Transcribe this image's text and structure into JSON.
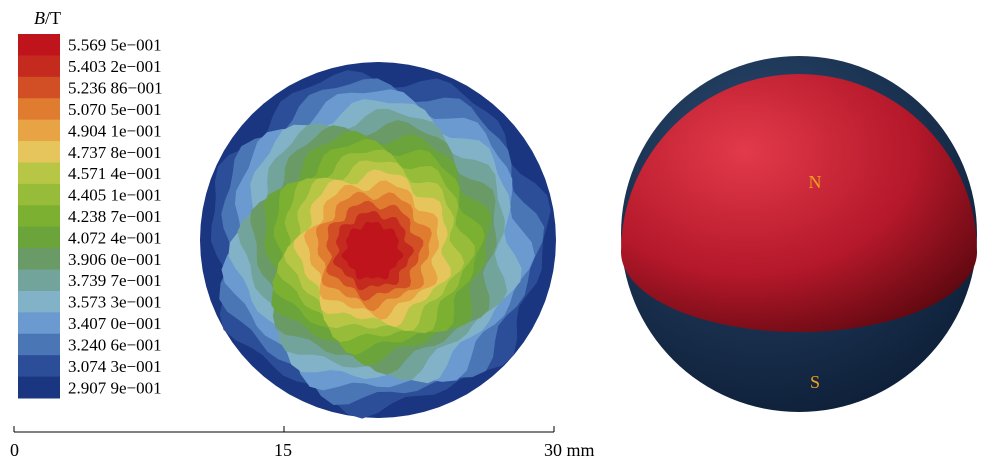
{
  "legend": {
    "title_symbol": "B",
    "title_unit": "/T",
    "labels": [
      "5.569 5e−001",
      "5.403 2e−001",
      "5.236 86−001",
      "5.070 5e−001",
      "4.904 1e−001",
      "4.737 8e−001",
      "4.571 4e−001",
      "4.405 1e−001",
      "4.238 7e−001",
      "4.072 4e−001",
      "3.906 0e−001",
      "3.739 7e−001",
      "3.573 3e−001",
      "3.407 0e−001",
      "3.240 6e−001",
      "3.074 3e−001",
      "2.907 9e−001"
    ],
    "colors": [
      "#c0141c",
      "#c42a1e",
      "#d24e24",
      "#e07c30",
      "#e8a444",
      "#e6c65c",
      "#b8c646",
      "#96bc3a",
      "#7cb030",
      "#6ca43c",
      "#6a9a66",
      "#72a49c",
      "#82b2c8",
      "#6a9ad0",
      "#4a76b6",
      "#2c4e98",
      "#1a3680"
    ]
  },
  "scale_bar": {
    "ticks": [
      "0",
      "15",
      "30 mm"
    ]
  },
  "sphere": {
    "north": "N",
    "south": "S"
  }
}
